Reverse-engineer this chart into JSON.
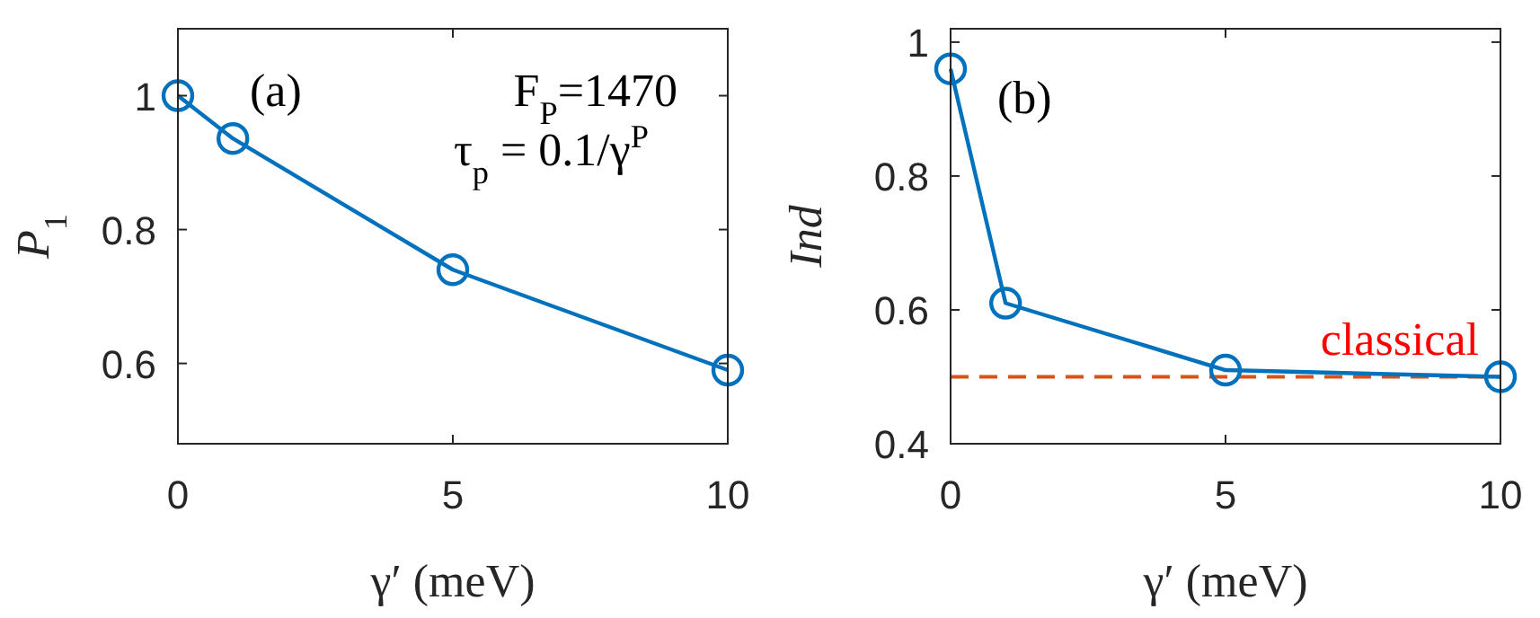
{
  "chart_data": [
    {
      "type": "line",
      "x": [
        0,
        1,
        5,
        10
      ],
      "series": [
        {
          "color": "#0072bd",
          "values": [
            1.0,
            0.936,
            0.74,
            0.59
          ]
        }
      ],
      "marker": "circle",
      "line_style": "solid",
      "xlim": [
        0,
        10
      ],
      "xticks": [
        0,
        5,
        10
      ],
      "ylim": [
        0.48,
        1.1
      ],
      "yticks": [
        0.6,
        0.8,
        1
      ],
      "xlabel": "γ′ (meV)",
      "ylabel": "P$_{1}$",
      "annotations": [
        "(a)",
        "F$_{P}$=1470",
        "τ$_{p}$ = 0.1/γ$^{P}$"
      ]
    },
    {
      "type": "line",
      "x": [
        0,
        1,
        5,
        10
      ],
      "series": [
        {
          "color": "#0072bd",
          "values": [
            0.96,
            0.61,
            0.51,
            0.5
          ]
        }
      ],
      "marker": "circle",
      "line_style": "solid",
      "xlim": [
        0,
        10
      ],
      "xticks": [
        0,
        5,
        10
      ],
      "ylim": [
        0.4,
        1.02
      ],
      "yticks": [
        0.4,
        0.6,
        0.8,
        1
      ],
      "xlabel": "γ′ (meV)",
      "ylabel": "Ind",
      "annotations": [
        "(b)"
      ],
      "ref_lines": [
        {
          "axis": "y",
          "value": 0.5,
          "label": "classical",
          "color": "#d95319",
          "line_style": "dashed"
        }
      ]
    }
  ]
}
